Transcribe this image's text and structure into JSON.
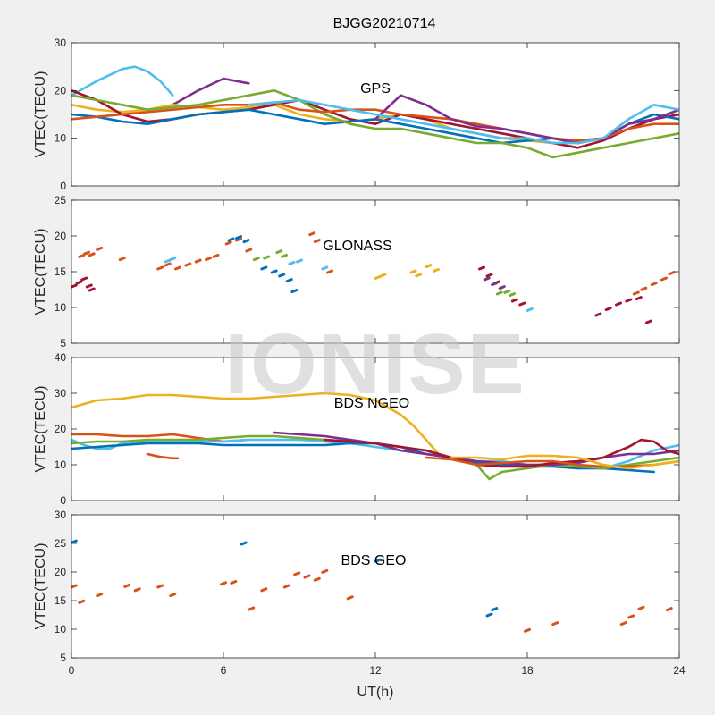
{
  "title": "BJGG20210714",
  "watermark": "IONISE",
  "xlabel": "UT(h)",
  "xticks": [
    0,
    6,
    12,
    18,
    24
  ],
  "series_colors": [
    "#0072BD",
    "#D95319",
    "#EDB120",
    "#7E2F8E",
    "#77AC30",
    "#4DBEEE",
    "#A2142F"
  ],
  "chart_data": [
    {
      "type": "line",
      "annotation": "GPS",
      "ylabel": "VTEC(TECU)",
      "xlim": [
        0,
        24
      ],
      "ylim": [
        0,
        30
      ],
      "yticks": [
        0,
        10,
        20,
        30
      ],
      "series": [
        {
          "color": "#4DBEEE",
          "x": [
            0,
            1,
            2,
            2.5,
            3,
            3.5,
            4
          ],
          "y": [
            19,
            22,
            24.5,
            25,
            24,
            22,
            19
          ]
        },
        {
          "color": "#7E2F8E",
          "x": [
            4,
            5,
            6,
            6.5,
            7
          ],
          "y": [
            17,
            20,
            22.5,
            22,
            21.5
          ]
        },
        {
          "color": "#EDB120",
          "x": [
            0,
            1,
            2,
            3,
            4,
            5,
            6,
            7,
            8,
            9,
            10,
            11,
            12,
            13,
            14,
            15,
            16,
            17,
            18,
            19,
            20,
            21,
            22,
            23,
            24
          ],
          "y": [
            17,
            16,
            15.5,
            16,
            17,
            16.5,
            16,
            16.5,
            17,
            15,
            14,
            13.5,
            14,
            15,
            14,
            12,
            11,
            10,
            9.5,
            9,
            9,
            10,
            12,
            14,
            16
          ]
        },
        {
          "color": "#A2142F",
          "x": [
            0,
            1,
            2,
            3,
            4,
            5,
            6,
            7,
            8,
            9,
            10,
            11,
            12,
            13,
            14,
            15,
            16,
            17,
            18,
            19,
            20,
            21,
            22,
            23,
            24
          ],
          "y": [
            20,
            18,
            15,
            13.5,
            14,
            15,
            15.5,
            16,
            17,
            18,
            16,
            14,
            13,
            15,
            14,
            13,
            12,
            11,
            10,
            9,
            8,
            9.5,
            12,
            14,
            15
          ]
        },
        {
          "color": "#0072BD",
          "x": [
            0,
            1,
            2,
            3,
            4,
            5,
            6,
            7,
            8,
            9,
            10,
            11,
            12,
            13,
            14,
            15,
            16,
            17,
            18,
            19,
            20,
            21,
            22,
            23,
            24
          ],
          "y": [
            15,
            14.5,
            13.5,
            13,
            14,
            15,
            15.5,
            16,
            15,
            14,
            13,
            13.5,
            14,
            13,
            12,
            11,
            10,
            9,
            9.5,
            10,
            9,
            10,
            13,
            15,
            14
          ]
        },
        {
          "color": "#77AC30",
          "x": [
            0,
            1,
            2,
            3,
            4,
            5,
            6,
            7,
            8,
            9,
            10,
            11,
            12,
            13,
            14,
            15,
            16,
            17,
            18,
            19,
            20,
            21,
            22,
            23,
            24
          ],
          "y": [
            19,
            18,
            17,
            16,
            16.5,
            17,
            18,
            19,
            20,
            18,
            15,
            13,
            12,
            12,
            11,
            10,
            9,
            9,
            8,
            6,
            7,
            8,
            9,
            10,
            11
          ]
        },
        {
          "color": "#D95319",
          "x": [
            0,
            1,
            2,
            3,
            4,
            5,
            6,
            7,
            8,
            9,
            10,
            11,
            12,
            13,
            14,
            15,
            16,
            17,
            18,
            19,
            20,
            21,
            22,
            23,
            24
          ],
          "y": [
            14,
            14.5,
            15,
            15.5,
            16,
            16.5,
            17,
            17,
            17.5,
            16,
            15.5,
            16,
            16,
            15,
            14.5,
            14,
            13,
            12,
            11,
            10,
            9.5,
            10,
            12,
            13,
            13
          ]
        },
        {
          "color": "#7E2F8E",
          "x": [
            12,
            13,
            14,
            15,
            16,
            17,
            18,
            19,
            20,
            21,
            22,
            23,
            24
          ],
          "y": [
            14,
            19,
            17,
            14,
            12.5,
            12,
            11,
            10,
            9,
            10,
            13,
            14,
            16
          ]
        },
        {
          "color": "#4DBEEE",
          "x": [
            7,
            8,
            9,
            10,
            11,
            12,
            13,
            14,
            15,
            16,
            17,
            18,
            19,
            20,
            21,
            22,
            23,
            24
          ],
          "y": [
            17,
            17.5,
            18,
            17,
            16,
            15,
            14,
            13,
            12,
            11,
            10,
            10,
            9,
            9,
            10,
            14,
            17,
            16
          ]
        }
      ]
    },
    {
      "type": "scatter",
      "annotation": "GLONASS",
      "ylabel": "VTEC(TECU)",
      "xlim": [
        0,
        24
      ],
      "ylim": [
        5,
        25
      ],
      "yticks": [
        5,
        10,
        15,
        20,
        25
      ],
      "series": [
        {
          "color": "#A2142F",
          "x": [
            0.1,
            0.3,
            0.5,
            0.7,
            0.8,
            16.2,
            16.5,
            16.8,
            17.5,
            17.8,
            20.8,
            21.2,
            21.6,
            22.0,
            22.4,
            22.8
          ],
          "y": [
            13,
            13.5,
            14,
            13,
            12.5,
            15.5,
            14.5,
            13.5,
            11,
            10.5,
            9,
            9.8,
            10.5,
            11,
            11.3,
            8
          ]
        },
        {
          "color": "#D95319",
          "x": [
            0.4,
            0.6,
            0.8,
            1.1,
            2.0,
            3.5,
            3.8,
            4.2,
            4.6,
            5.0,
            5.4,
            5.7,
            6.2,
            6.6,
            7.0,
            9.5,
            9.7,
            10.2,
            22.3,
            22.6,
            23.0,
            23.4,
            23.7
          ],
          "y": [
            17.2,
            17.6,
            17.4,
            18.2,
            16.8,
            15.5,
            16,
            15.5,
            16,
            16.5,
            16.8,
            17.2,
            19,
            19.5,
            18,
            20.3,
            19.3,
            15,
            12,
            12.6,
            13.3,
            14,
            14.8
          ]
        },
        {
          "color": "#0072BD",
          "x": [
            6.3,
            6.6,
            6.9,
            7.6,
            8.0,
            8.3,
            8.6,
            8.8
          ],
          "y": [
            19.5,
            19.8,
            19.3,
            15.5,
            15,
            14.5,
            13.8,
            12.3
          ]
        },
        {
          "color": "#EDB120",
          "x": [
            12.1,
            12.3,
            13.5,
            13.7,
            14.1,
            14.4
          ],
          "y": [
            14.2,
            14.5,
            15,
            14.5,
            15.8,
            15.2
          ]
        },
        {
          "color": "#77AC30",
          "x": [
            7.3,
            7.7,
            8.2,
            8.4,
            16.9,
            17.2,
            17.4
          ],
          "y": [
            16.8,
            17,
            17.8,
            17.2,
            12,
            12.2,
            11.8
          ]
        },
        {
          "color": "#4DBEEE",
          "x": [
            3.8,
            4.0,
            8.7,
            9.0,
            10.0,
            18.1
          ],
          "y": [
            16.5,
            16.8,
            16.2,
            16.5,
            15.5,
            9.7
          ]
        },
        {
          "color": "#7E2F8E",
          "x": [
            16.4,
            16.7,
            17.0
          ],
          "y": [
            14,
            13.3,
            12.8
          ]
        }
      ]
    },
    {
      "type": "line",
      "annotation": "BDS NGEO",
      "ylabel": "VTEC(TECU)",
      "xlim": [
        0,
        24
      ],
      "ylim": [
        0,
        40
      ],
      "yticks": [
        0,
        10,
        20,
        30,
        40
      ],
      "series": [
        {
          "color": "#EDB120",
          "x": [
            0,
            1,
            2,
            3,
            4,
            5,
            6,
            7,
            8,
            9,
            10,
            11,
            12,
            13,
            13.5,
            14,
            14.5
          ],
          "y": [
            26,
            28,
            28.5,
            29.5,
            29.5,
            29,
            28.5,
            28.5,
            29,
            29.5,
            30,
            29.5,
            28,
            24,
            21,
            17,
            13
          ]
        },
        {
          "color": "#D95319",
          "x": [
            0,
            1,
            2,
            3,
            4,
            5,
            6,
            7
          ],
          "y": [
            18.5,
            18.5,
            18,
            18,
            18.5,
            17.5,
            16.5,
            17
          ]
        },
        {
          "color": "#D95319",
          "x": [
            3,
            3.5,
            4,
            4.2
          ],
          "y": [
            13,
            12.2,
            11.8,
            11.8
          ]
        },
        {
          "color": "#4DBEEE",
          "x": [
            0,
            0.5,
            1,
            1.5,
            2,
            3,
            4,
            5,
            6,
            7,
            8,
            9,
            10,
            11,
            12,
            13,
            14,
            15,
            16,
            17,
            18,
            19,
            20,
            21,
            22,
            23,
            24
          ],
          "y": [
            17,
            15.5,
            14.5,
            14.5,
            16,
            16.5,
            16.5,
            16.5,
            16.5,
            17,
            17,
            17,
            16.5,
            16,
            15,
            14,
            13,
            12,
            11,
            11,
            10,
            10,
            9,
            9,
            11,
            14,
            15.5
          ]
        },
        {
          "color": "#0072BD",
          "x": [
            0,
            1,
            2,
            3,
            4,
            5,
            6,
            7,
            8,
            9,
            10,
            11,
            12,
            13,
            14,
            15,
            16,
            17,
            18,
            19,
            20,
            21,
            22,
            23
          ],
          "y": [
            14.5,
            15,
            15.5,
            16,
            16,
            16,
            15.5,
            15.5,
            15.5,
            15.5,
            15.5,
            16,
            16,
            15,
            13,
            12,
            10.5,
            10,
            9.5,
            9.5,
            9,
            9,
            8.5,
            8
          ]
        },
        {
          "color": "#77AC30",
          "x": [
            0,
            1,
            2,
            3,
            4,
            5,
            6,
            7,
            8,
            9,
            10,
            11,
            12,
            13,
            14,
            15,
            16,
            16.5,
            17,
            18,
            19,
            20,
            21,
            22,
            23,
            24
          ],
          "y": [
            16,
            16.5,
            16.5,
            17,
            17,
            17,
            17.5,
            18,
            18,
            17.5,
            17,
            16.5,
            16,
            15,
            14,
            12,
            10,
            6,
            8,
            9,
            10,
            9.5,
            9,
            10,
            11,
            12
          ]
        },
        {
          "color": "#7E2F8E",
          "x": [
            8,
            9,
            10,
            11,
            12,
            13,
            14,
            15,
            16,
            17,
            18,
            19,
            20,
            21,
            22,
            23,
            24
          ],
          "y": [
            19,
            18.5,
            18,
            17,
            16,
            14,
            13,
            12,
            11,
            10.5,
            10,
            10,
            10.5,
            12,
            13,
            13,
            14
          ]
        },
        {
          "color": "#A2142F",
          "x": [
            10,
            11,
            12,
            13,
            14,
            15,
            16,
            17,
            18,
            19,
            20,
            21,
            22,
            22.5,
            23,
            23.5,
            24
          ],
          "y": [
            17,
            16.5,
            16,
            15,
            14,
            12,
            10,
            9.5,
            9.5,
            10.5,
            11,
            12,
            15,
            17,
            16.5,
            14,
            13
          ]
        },
        {
          "color": "#D95319",
          "x": [
            14,
            15,
            16,
            17,
            18,
            19,
            20,
            21,
            22,
            23,
            24
          ],
          "y": [
            12,
            11.5,
            10,
            10.5,
            11,
            11,
            10,
            9.5,
            9.5,
            10,
            11
          ]
        },
        {
          "color": "#EDB120",
          "x": [
            15,
            16,
            17,
            18,
            19,
            20,
            21,
            22,
            23,
            24
          ],
          "y": [
            12,
            12,
            11.5,
            12.5,
            12.5,
            12,
            10,
            9,
            10,
            11
          ]
        }
      ]
    },
    {
      "type": "scatter",
      "annotation": "BDS GEO",
      "ylabel": "VTEC(TECU)",
      "xlim": [
        0,
        24
      ],
      "ylim": [
        5,
        30
      ],
      "yticks": [
        5,
        10,
        15,
        20,
        25,
        30
      ],
      "series": [
        {
          "color": "#D95319",
          "x": [
            0.1,
            0.4,
            1.1,
            2.2,
            2.6,
            3.5,
            4.0,
            6.0,
            6.4,
            7.1,
            7.6,
            8.5,
            8.9,
            9.3,
            9.7,
            10.0,
            11.0,
            18.0,
            19.1,
            21.8,
            22.1,
            22.5,
            23.6
          ],
          "y": [
            17.5,
            14.8,
            16,
            17.6,
            16.9,
            17.5,
            16,
            18,
            18.2,
            13.6,
            16.9,
            17.5,
            19.7,
            19.2,
            18.7,
            20.1,
            15.5,
            9.8,
            11,
            11,
            12.2,
            13.7,
            13.5
          ]
        },
        {
          "color": "#0072BD",
          "x": [
            0.1,
            6.8,
            12.1,
            16.5,
            16.7
          ],
          "y": [
            25.3,
            25,
            22,
            12.5,
            13.5
          ]
        }
      ]
    }
  ]
}
